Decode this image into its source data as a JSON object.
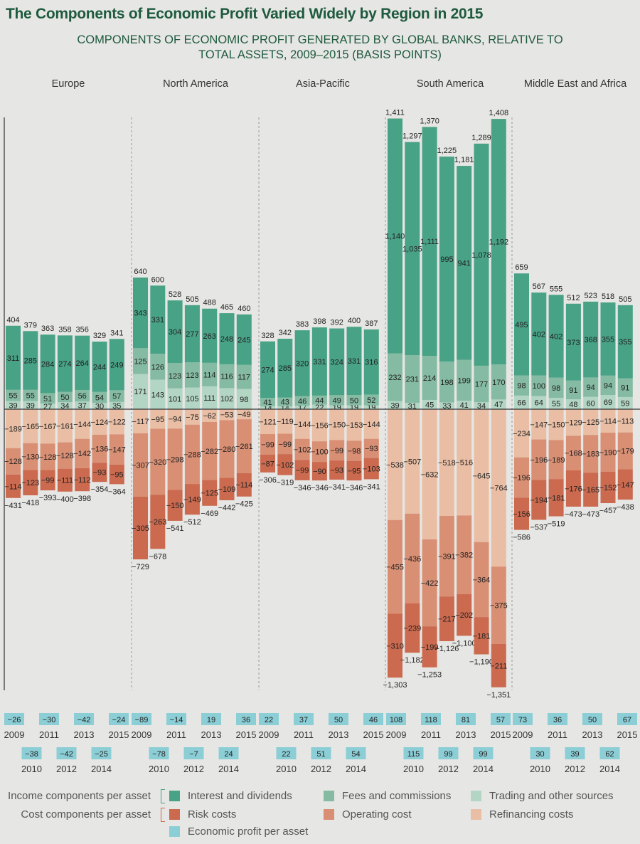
{
  "title": "The Components of Economic Profit Varied Widely by Region in 2015",
  "subtitle_line1": "COMPONENTS OF ECONOMIC PROFIT GENERATED BY GLOBAL BANKS, RELATIVE TO",
  "subtitle_line2": "TOTAL ASSETS, 2009–2015 (BASIS POINTS)",
  "colors": {
    "interest": "#48a286",
    "fees": "#86bba3",
    "trading": "#b3d5c4",
    "risk": "#cb6a4f",
    "operating": "#d98f74",
    "refinancing": "#e9bea4",
    "ep": "#8cced6",
    "title": "#1e5a3e"
  },
  "legend": {
    "income_label": "Income components per asset",
    "cost_label": "Cost components per asset",
    "items": [
      {
        "key": "interest",
        "label": "Interest and dividends"
      },
      {
        "key": "fees",
        "label": "Fees and commissions"
      },
      {
        "key": "trading",
        "label": "Trading and other sources"
      },
      {
        "key": "risk",
        "label": "Risk costs"
      },
      {
        "key": "operating",
        "label": "Operating cost"
      },
      {
        "key": "refinancing",
        "label": "Refinancing  costs"
      },
      {
        "key": "ep",
        "label": "Economic profit per asset"
      }
    ]
  },
  "chart_data": {
    "type": "bar",
    "stacked": true,
    "title": "COMPONENTS OF ECONOMIC PROFIT GENERATED BY GLOBAL BANKS, RELATIVE TO TOTAL ASSETS, 2009–2015 (BASIS POINTS)",
    "units": "basis points",
    "years": [
      "2009",
      "2010",
      "2011",
      "2012",
      "2013",
      "2014",
      "2015"
    ],
    "ylim": [
      -1351,
      1411
    ],
    "regions": [
      {
        "name": "Europe",
        "income_total": [
          404,
          379,
          363,
          358,
          356,
          329,
          341
        ],
        "interest": [
          311,
          285,
          284,
          274,
          264,
          244,
          249
        ],
        "fees": [
          55,
          55,
          51,
          50,
          56,
          54,
          57
        ],
        "trading": [
          39,
          39,
          27,
          34,
          37,
          30,
          35
        ],
        "refinancing": [
          -189,
          -165,
          -167,
          -161,
          -144,
          -124,
          -122
        ],
        "operating": [
          -128,
          -130,
          -128,
          -128,
          -142,
          -136,
          -147
        ],
        "risk": [
          -114,
          -123,
          -99,
          -111,
          -112,
          -93,
          -95
        ],
        "cost_total": [
          -431,
          -418,
          -393,
          -400,
          -398,
          -354,
          -364
        ],
        "economic_profit": [
          -26,
          -38,
          -30,
          -42,
          -42,
          -25,
          -24
        ]
      },
      {
        "name": "North America",
        "income_total": [
          640,
          600,
          528,
          505,
          488,
          465,
          460
        ],
        "interest": [
          343,
          331,
          304,
          277,
          263,
          248,
          245
        ],
        "fees": [
          125,
          126,
          123,
          123,
          114,
          116,
          117
        ],
        "trading": [
          171,
          143,
          101,
          105,
          111,
          102,
          98
        ],
        "refinancing": [
          -117,
          -95,
          -94,
          -75,
          -62,
          -53,
          -49
        ],
        "operating": [
          -307,
          -320,
          -298,
          -288,
          -282,
          -280,
          -261
        ],
        "risk": [
          -305,
          -263,
          -150,
          -149,
          -125,
          -109,
          -114
        ],
        "cost_total": [
          -729,
          -678,
          -541,
          -512,
          -469,
          -442,
          -425
        ],
        "economic_profit": [
          -89,
          -78,
          -14,
          -7,
          19,
          24,
          36
        ]
      },
      {
        "name": "Asia-Pacific",
        "income_total": [
          328,
          342,
          383,
          398,
          392,
          400,
          387
        ],
        "interest": [
          274,
          285,
          320,
          331,
          324,
          331,
          316
        ],
        "fees": [
          41,
          43,
          46,
          44,
          49,
          50,
          52
        ],
        "trading": [
          14,
          14,
          17,
          22,
          19,
          19,
          19
        ],
        "refinancing": [
          -121,
          -119,
          -144,
          -156,
          -150,
          -153,
          -144
        ],
        "operating": [
          -99,
          -99,
          -102,
          -100,
          -99,
          -98,
          -93
        ],
        "risk": [
          -87,
          -102,
          -99,
          -90,
          -93,
          -95,
          -103
        ],
        "cost_total": [
          -306,
          -319,
          -346,
          -346,
          -341,
          -346,
          -341
        ],
        "economic_profit": [
          22,
          22,
          37,
          51,
          50,
          54,
          46
        ]
      },
      {
        "name": "South America",
        "income_total": [
          1411,
          1297,
          1370,
          1225,
          1181,
          1289,
          1408
        ],
        "interest": [
          1140,
          1035,
          1111,
          995,
          941,
          1078,
          1192
        ],
        "fees": [
          232,
          231,
          214,
          198,
          199,
          177,
          170
        ],
        "trading": [
          39,
          31,
          45,
          33,
          41,
          34,
          47
        ],
        "refinancing": [
          -538,
          -507,
          -632,
          -518,
          -516,
          -645,
          -764
        ],
        "operating": [
          -455,
          -436,
          -422,
          -391,
          -382,
          -364,
          -375
        ],
        "risk": [
          -310,
          -239,
          -199,
          -217,
          -202,
          -181,
          -211
        ],
        "cost_total": [
          -1303,
          -1182,
          -1253,
          -1126,
          -1100,
          -1190,
          -1351
        ],
        "economic_profit": [
          108,
          115,
          118,
          99,
          81,
          99,
          57
        ]
      },
      {
        "name": "Middle East and Africa",
        "income_total": [
          659,
          567,
          555,
          512,
          523,
          518,
          505
        ],
        "interest": [
          495,
          402,
          402,
          373,
          368,
          355,
          355
        ],
        "fees": [
          98,
          100,
          98,
          91,
          94,
          94,
          91
        ],
        "trading": [
          66,
          64,
          55,
          48,
          60,
          69,
          59
        ],
        "refinancing": [
          -234,
          -147,
          -150,
          -129,
          -125,
          -114,
          -113
        ],
        "operating": [
          -196,
          -196,
          -189,
          -168,
          -183,
          -190,
          -179
        ],
        "risk": [
          -156,
          -194,
          -181,
          -176,
          -165,
          -152,
          -147
        ],
        "cost_total": [
          -586,
          -537,
          -519,
          -473,
          -473,
          -457,
          -438
        ],
        "economic_profit": [
          73,
          30,
          36,
          39,
          50,
          62,
          67
        ]
      }
    ]
  }
}
